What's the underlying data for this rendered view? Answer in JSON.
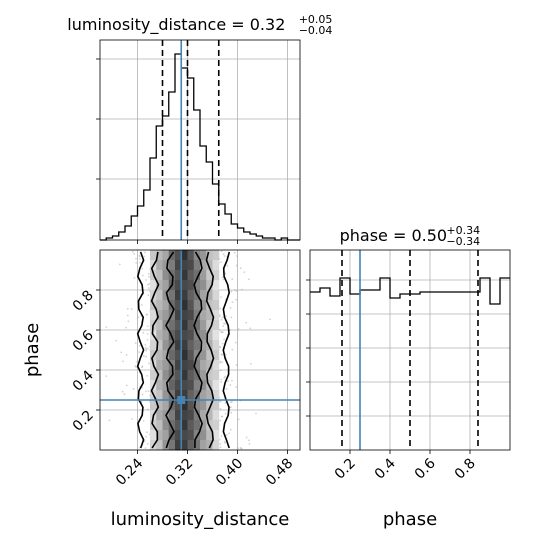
{
  "chart_data": {
    "type": "corner",
    "parameters": [
      "luminosity_distance",
      "phase"
    ],
    "truths": {
      "luminosity_distance": 0.31,
      "phase": 0.25
    },
    "colors": {
      "truth": "#4682b4",
      "hist": "#000000",
      "grid": "#b0b0b0",
      "quantile": "#000000"
    },
    "panels": [
      {
        "name": "luminosity_distance-marginal",
        "type": "histogram",
        "title": {
          "text": "luminosity_distance = 0.32",
          "sup": "+0.05",
          "sub": "−0.04"
        },
        "x_range": [
          0.18,
          0.5
        ],
        "y_range": [
          0,
          1.0
        ],
        "quantiles": [
          0.28,
          0.32,
          0.37
        ],
        "bins": [
          {
            "x0": 0.18,
            "x1": 0.19,
            "v": 0.0
          },
          {
            "x0": 0.19,
            "x1": 0.2,
            "v": 0.01
          },
          {
            "x0": 0.2,
            "x1": 0.21,
            "v": 0.02
          },
          {
            "x0": 0.21,
            "x1": 0.22,
            "v": 0.04
          },
          {
            "x0": 0.22,
            "x1": 0.23,
            "v": 0.07
          },
          {
            "x0": 0.23,
            "x1": 0.24,
            "v": 0.12
          },
          {
            "x0": 0.24,
            "x1": 0.25,
            "v": 0.17
          },
          {
            "x0": 0.25,
            "x1": 0.26,
            "v": 0.25
          },
          {
            "x0": 0.26,
            "x1": 0.27,
            "v": 0.41
          },
          {
            "x0": 0.27,
            "x1": 0.28,
            "v": 0.57
          },
          {
            "x0": 0.28,
            "x1": 0.29,
            "v": 0.62
          },
          {
            "x0": 0.29,
            "x1": 0.3,
            "v": 0.74
          },
          {
            "x0": 0.3,
            "x1": 0.31,
            "v": 0.93
          },
          {
            "x0": 0.31,
            "x1": 0.32,
            "v": 0.86
          },
          {
            "x0": 0.32,
            "x1": 0.33,
            "v": 0.81
          },
          {
            "x0": 0.33,
            "x1": 0.34,
            "v": 0.65
          },
          {
            "x0": 0.34,
            "x1": 0.35,
            "v": 0.47
          },
          {
            "x0": 0.35,
            "x1": 0.36,
            "v": 0.39
          },
          {
            "x0": 0.36,
            "x1": 0.37,
            "v": 0.28
          },
          {
            "x0": 0.37,
            "x1": 0.38,
            "v": 0.18
          },
          {
            "x0": 0.38,
            "x1": 0.39,
            "v": 0.13
          },
          {
            "x0": 0.39,
            "x1": 0.4,
            "v": 0.08
          },
          {
            "x0": 0.4,
            "x1": 0.41,
            "v": 0.06
          },
          {
            "x0": 0.41,
            "x1": 0.42,
            "v": 0.04
          },
          {
            "x0": 0.42,
            "x1": 0.43,
            "v": 0.03
          },
          {
            "x0": 0.43,
            "x1": 0.44,
            "v": 0.02
          },
          {
            "x0": 0.44,
            "x1": 0.45,
            "v": 0.01
          },
          {
            "x0": 0.45,
            "x1": 0.46,
            "v": 0.01
          },
          {
            "x0": 0.46,
            "x1": 0.47,
            "v": 0.0
          },
          {
            "x0": 0.47,
            "x1": 0.48,
            "v": 0.01
          },
          {
            "x0": 0.48,
            "x1": 0.49,
            "v": 0.0
          },
          {
            "x0": 0.49,
            "x1": 0.5,
            "v": 0.0
          }
        ]
      },
      {
        "name": "phase-marginal",
        "type": "histogram",
        "title": {
          "text": "phase = 0.50",
          "sup": "+0.34",
          "sub": "−0.34"
        },
        "x_range": [
          0.0,
          1.0
        ],
        "y_range": [
          0,
          1.0
        ],
        "quantiles": [
          0.16,
          0.5,
          0.84
        ],
        "bins": [
          {
            "x0": 0.0,
            "x1": 0.05,
            "v": 0.79
          },
          {
            "x0": 0.05,
            "x1": 0.1,
            "v": 0.81
          },
          {
            "x0": 0.1,
            "x1": 0.15,
            "v": 0.77
          },
          {
            "x0": 0.15,
            "x1": 0.2,
            "v": 0.86
          },
          {
            "x0": 0.2,
            "x1": 0.25,
            "v": 0.78
          },
          {
            "x0": 0.25,
            "x1": 0.3,
            "v": 0.8
          },
          {
            "x0": 0.3,
            "x1": 0.35,
            "v": 0.8
          },
          {
            "x0": 0.35,
            "x1": 0.4,
            "v": 0.86
          },
          {
            "x0": 0.4,
            "x1": 0.45,
            "v": 0.76
          },
          {
            "x0": 0.45,
            "x1": 0.5,
            "v": 0.78
          },
          {
            "x0": 0.5,
            "x1": 0.55,
            "v": 0.78
          },
          {
            "x0": 0.55,
            "x1": 0.6,
            "v": 0.79
          },
          {
            "x0": 0.6,
            "x1": 0.65,
            "v": 0.79
          },
          {
            "x0": 0.65,
            "x1": 0.7,
            "v": 0.79
          },
          {
            "x0": 0.7,
            "x1": 0.75,
            "v": 0.79
          },
          {
            "x0": 0.75,
            "x1": 0.8,
            "v": 0.79
          },
          {
            "x0": 0.8,
            "x1": 0.85,
            "v": 0.79
          },
          {
            "x0": 0.85,
            "x1": 0.9,
            "v": 0.86
          },
          {
            "x0": 0.9,
            "x1": 0.95,
            "v": 0.73
          },
          {
            "x0": 0.95,
            "x1": 1.0,
            "v": 0.86
          }
        ]
      },
      {
        "name": "joint-2d",
        "type": "2d-density",
        "x_param": "luminosity_distance",
        "y_param": "phase",
        "x_range": [
          0.18,
          0.5
        ],
        "y_range": [
          0.0,
          1.0
        ],
        "x_ticks": [
          0.24,
          0.32,
          0.4,
          0.48
        ],
        "y_ticks": [
          0.2,
          0.4,
          0.6,
          0.8
        ],
        "density_columns": [
          {
            "x0": 0.26,
            "x1": 0.27,
            "shade": "#d4d4d4"
          },
          {
            "x0": 0.27,
            "x1": 0.28,
            "shade": "#b8b8b8"
          },
          {
            "x0": 0.28,
            "x1": 0.29,
            "shade": "#9a9a9a"
          },
          {
            "x0": 0.29,
            "x1": 0.3,
            "shade": "#707070"
          },
          {
            "x0": 0.3,
            "x1": 0.31,
            "shade": "#4a4a4a"
          },
          {
            "x0": 0.31,
            "x1": 0.32,
            "shade": "#3c3c3c"
          },
          {
            "x0": 0.32,
            "x1": 0.33,
            "shade": "#555555"
          },
          {
            "x0": 0.33,
            "x1": 0.34,
            "shade": "#7c7c7c"
          },
          {
            "x0": 0.34,
            "x1": 0.35,
            "shade": "#9c9c9c"
          },
          {
            "x0": 0.35,
            "x1": 0.36,
            "shade": "#bcbcbc"
          },
          {
            "x0": 0.36,
            "x1": 0.37,
            "shade": "#d6d6d6"
          }
        ],
        "contours": [
          {
            "x_left": 0.245,
            "x_right": 0.382
          },
          {
            "x_left": 0.268,
            "x_right": 0.356
          },
          {
            "x_left": 0.292,
            "x_right": 0.337
          }
        ]
      }
    ],
    "xlabels": [
      "luminosity_distance",
      "phase"
    ],
    "ylabels": [
      "phase"
    ],
    "phase_x_ticks": [
      0.2,
      0.4,
      0.6,
      0.8
    ]
  }
}
